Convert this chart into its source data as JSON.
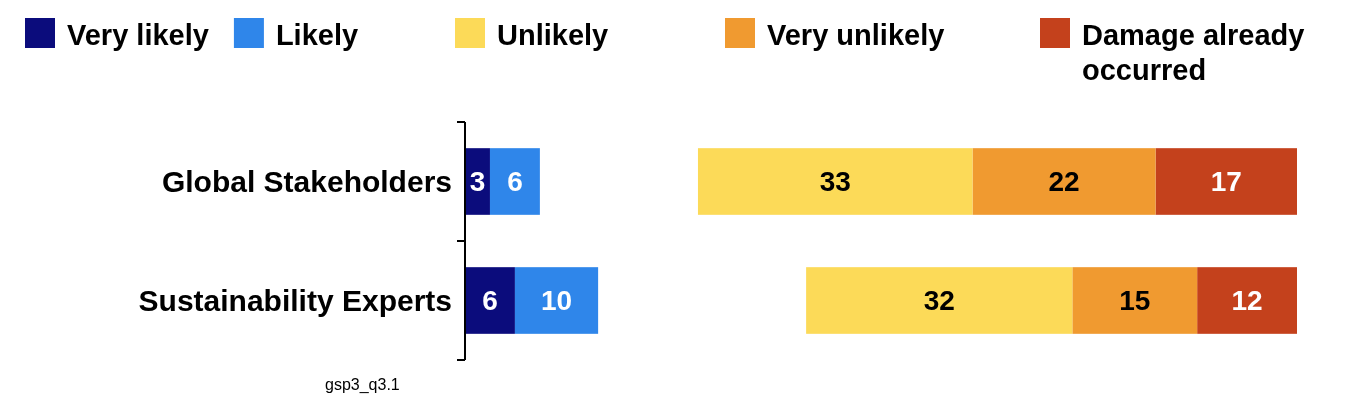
{
  "chart_data": [
    {
      "type": "bar",
      "orientation": "horizontal",
      "stacked": true,
      "categories": [
        "Global Stakeholders",
        "Sustainability Experts"
      ],
      "series": [
        {
          "name": "Very likely",
          "color": "#0b0c7c",
          "values": [
            3,
            6
          ]
        },
        {
          "name": "Likely",
          "color": "#2f86ea",
          "values": [
            6,
            10
          ]
        }
      ],
      "tick_labels": "y",
      "data_labels": true,
      "legend": "top",
      "annotations": [
        "gsp3_q3.1"
      ]
    },
    {
      "type": "bar",
      "orientation": "horizontal",
      "stacked": true,
      "categories": [
        null,
        null
      ],
      "series": [
        {
          "name": "Damage already occurred",
          "color": "#c4411c",
          "values": [
            17,
            12
          ]
        },
        {
          "name": "Very unlikely",
          "color": "#f09a30",
          "values": [
            22,
            15
          ]
        },
        {
          "name": "Unlikely",
          "color": "#fcda58",
          "values": [
            33,
            32
          ]
        }
      ],
      "tick_labels": false,
      "data_labels": true,
      "legend": "top"
    }
  ]
}
